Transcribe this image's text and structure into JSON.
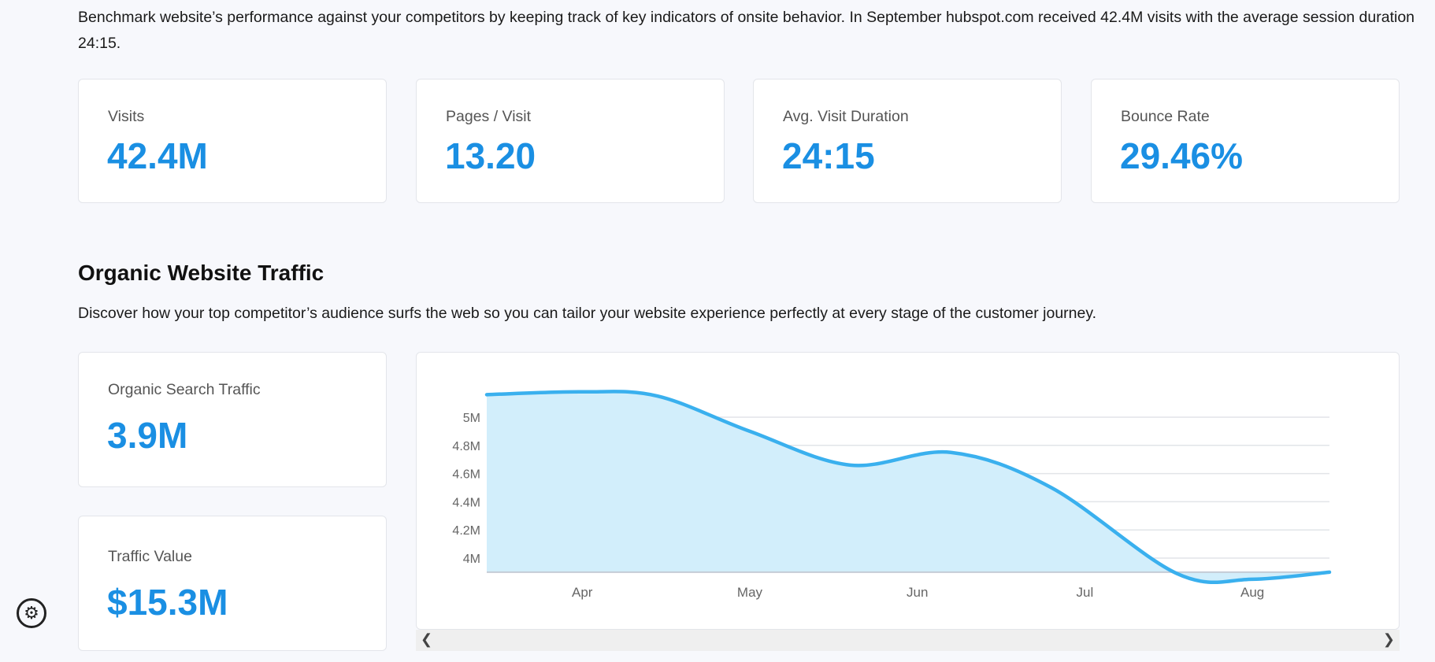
{
  "intro": "Benchmark website’s performance against your competitors by keeping track of key indicators of onsite behavior. In September hubspot.com received 42.4M visits with the average session duration 24:15.",
  "metrics": [
    {
      "label": "Visits",
      "value": "42.4M"
    },
    {
      "label": "Pages / Visit",
      "value": "13.20"
    },
    {
      "label": "Avg. Visit Duration",
      "value": "24:15"
    },
    {
      "label": "Bounce Rate",
      "value": "29.46%"
    }
  ],
  "organic": {
    "title": "Organic Website Traffic",
    "description": "Discover how your top competitor’s audience surfs the web so you can tailor your website experience perfectly at every stage of the customer journey.",
    "cards": [
      {
        "label": "Organic Search Traffic",
        "value": "3.9M"
      },
      {
        "label": "Traffic Value",
        "value": "$15.3M"
      }
    ]
  },
  "scroll": {
    "left": "❮",
    "right": "❯"
  },
  "icons": {
    "settings": "gear-icon",
    "gear_glyph": "⚙"
  },
  "colors": {
    "accent": "#1a8fe3",
    "line": "#3ab0ee",
    "fill": "#d2eefb",
    "background": "#f7f8fc"
  },
  "chart_data": {
    "type": "area",
    "categories": [
      "Apr",
      "May",
      "Jun",
      "Jul",
      "Aug"
    ],
    "x": [
      -0.57,
      0,
      0.45,
      1,
      1.6,
      2.2,
      2.8,
      3.55,
      4,
      4.46
    ],
    "values": [
      5.16,
      5.18,
      5.15,
      4.9,
      4.66,
      4.75,
      4.5,
      3.89,
      3.85,
      3.9
    ],
    "y_ticks": [
      "4M",
      "4.2M",
      "4.4M",
      "4.6M",
      "4.8M",
      "5M"
    ],
    "y_tick_values": [
      4.0,
      4.2,
      4.4,
      4.6,
      4.8,
      5.0
    ],
    "ylim": [
      3.9,
      5.2
    ],
    "unit": "M",
    "grid": true,
    "legend": "none"
  }
}
